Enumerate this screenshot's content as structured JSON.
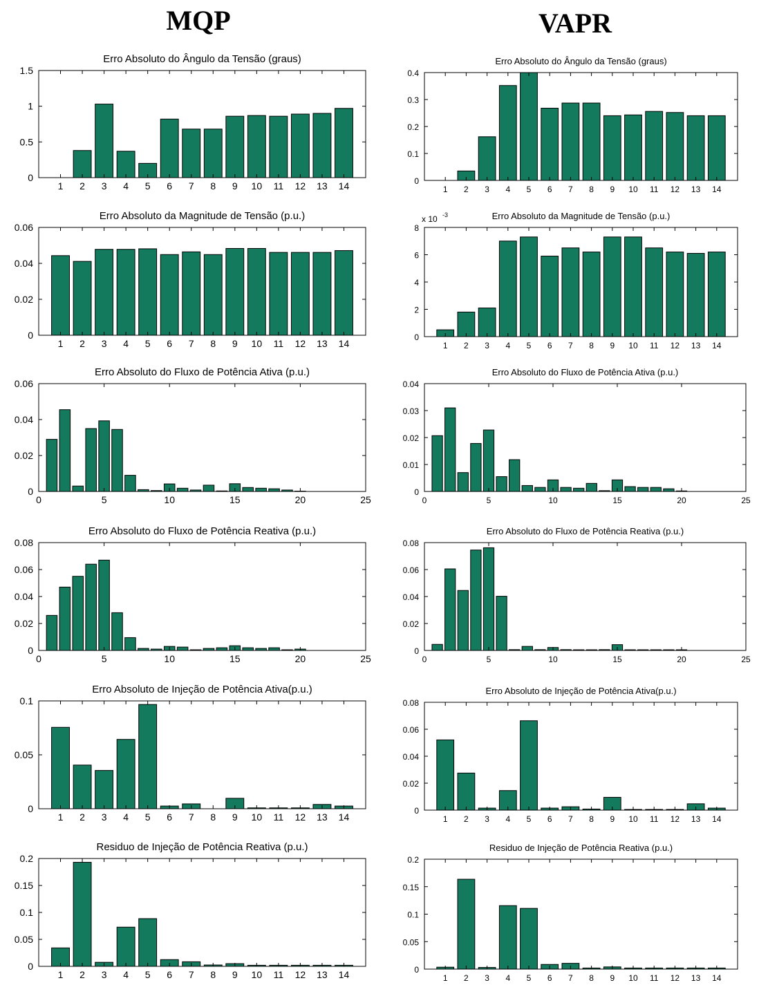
{
  "columns": {
    "left_title": "MQP",
    "right_title": "VAPR"
  },
  "colors": {
    "bar_fill": "#147a5e",
    "bar_stroke": "#000000"
  },
  "chart_data": [
    {
      "type": "bar",
      "title": "Erro Absoluto do Ângulo da Tensão (graus)",
      "xlabel": "",
      "ylabel": "",
      "categories": [
        "1",
        "2",
        "3",
        "4",
        "5",
        "6",
        "7",
        "8",
        "9",
        "10",
        "11",
        "12",
        "13",
        "14"
      ],
      "values": [
        0,
        0.38,
        1.03,
        0.37,
        0.2,
        0.82,
        0.68,
        0.68,
        0.86,
        0.87,
        0.86,
        0.89,
        0.9,
        0.97
      ],
      "ylim": [
        0,
        1.5
      ],
      "yticks": [
        "0",
        "0.5",
        "1",
        "1.5"
      ],
      "ytick_values": [
        0,
        0.5,
        1,
        1.5
      ]
    },
    {
      "type": "bar",
      "title": "Erro Absoluto do Ângulo da Tensão (graus)",
      "xlabel": "",
      "ylabel": "",
      "categories": [
        "1",
        "2",
        "3",
        "4",
        "5",
        "6",
        "7",
        "8",
        "9",
        "10",
        "11",
        "12",
        "13",
        "14"
      ],
      "values": [
        0,
        0.035,
        0.162,
        0.352,
        0.4,
        0.268,
        0.287,
        0.287,
        0.24,
        0.243,
        0.256,
        0.252,
        0.24,
        0.24
      ],
      "ylim": [
        0,
        0.4
      ],
      "yticks": [
        "0",
        "0.1",
        "0.2",
        "0.3",
        "0.4"
      ],
      "ytick_values": [
        0,
        0.1,
        0.2,
        0.3,
        0.4
      ]
    },
    {
      "type": "bar",
      "title": "Erro Absoluto da Magnitude de Tensão (p.u.)",
      "xlabel": "",
      "ylabel": "",
      "categories": [
        "1",
        "2",
        "3",
        "4",
        "5",
        "6",
        "7",
        "8",
        "9",
        "10",
        "11",
        "12",
        "13",
        "14"
      ],
      "values": [
        0.0443,
        0.0411,
        0.0478,
        0.0478,
        0.0481,
        0.0449,
        0.0464,
        0.0449,
        0.0483,
        0.0483,
        0.0461,
        0.0461,
        0.0461,
        0.0471
      ],
      "ylim": [
        0,
        0.06
      ],
      "yticks": [
        "0",
        "0.02",
        "0.04",
        "0.06"
      ],
      "ytick_values": [
        0,
        0.02,
        0.04,
        0.06
      ]
    },
    {
      "type": "bar",
      "title": "Erro Absoluto da Magnitude de Tensão (p.u.)",
      "xlabel": "",
      "ylabel": "",
      "exponent_label": "x 10",
      "exponent_power": "-3",
      "categories": [
        "1",
        "2",
        "3",
        "4",
        "5",
        "6",
        "7",
        "8",
        "9",
        "10",
        "11",
        "12",
        "13",
        "14"
      ],
      "values": [
        0.5,
        1.8,
        2.1,
        7.0,
        7.3,
        5.9,
        6.5,
        6.2,
        7.3,
        7.3,
        6.5,
        6.2,
        6.1,
        6.2
      ],
      "ylim": [
        0,
        8
      ],
      "yticks": [
        "0",
        "2",
        "4",
        "6",
        "8"
      ],
      "ytick_values": [
        0,
        2,
        4,
        6,
        8
      ]
    },
    {
      "type": "bar",
      "title": "Erro Absoluto do Fluxo de Potência Ativa  (p.u.)",
      "xlabel": "",
      "ylabel": "",
      "x": [
        1,
        2,
        3,
        4,
        5,
        6,
        7,
        8,
        9,
        10,
        11,
        12,
        13,
        14,
        15,
        16,
        17,
        18,
        19,
        20
      ],
      "values": [
        0.029,
        0.0455,
        0.003,
        0.035,
        0.0393,
        0.0345,
        0.009,
        0.001,
        0.0005,
        0.0042,
        0.0018,
        0.0008,
        0.0035,
        0.0003,
        0.0043,
        0.0022,
        0.0018,
        0.0015,
        0.0008,
        0.0002
      ],
      "xlim": [
        0,
        25
      ],
      "xticks": [
        "0",
        "5",
        "10",
        "15",
        "20",
        "25"
      ],
      "xtick_values": [
        0,
        5,
        10,
        15,
        20,
        25
      ],
      "ylim": [
        0,
        0.06
      ],
      "yticks": [
        "0",
        "0.02",
        "0.04",
        "0.06"
      ],
      "ytick_values": [
        0,
        0.02,
        0.04,
        0.06
      ]
    },
    {
      "type": "bar",
      "title": "Erro Absoluto do Fluxo de Potência Ativa  (p.u.)",
      "xlabel": "",
      "ylabel": "",
      "x": [
        1,
        2,
        3,
        4,
        5,
        6,
        7,
        8,
        9,
        10,
        11,
        12,
        13,
        14,
        15,
        16,
        17,
        18,
        19,
        20
      ],
      "values": [
        0.0207,
        0.031,
        0.007,
        0.0178,
        0.0228,
        0.0055,
        0.0118,
        0.0022,
        0.0015,
        0.0043,
        0.0015,
        0.0012,
        0.003,
        0.0003,
        0.0043,
        0.0018,
        0.0015,
        0.0015,
        0.001,
        0.0002
      ],
      "xlim": [
        0,
        25
      ],
      "xticks": [
        "0",
        "5",
        "10",
        "15",
        "20",
        "25"
      ],
      "xtick_values": [
        0,
        5,
        10,
        15,
        20,
        25
      ],
      "ylim": [
        0,
        0.04
      ],
      "yticks": [
        "0",
        "0.01",
        "0.02",
        "0.03",
        "0.04"
      ],
      "ytick_values": [
        0,
        0.01,
        0.02,
        0.03,
        0.04
      ]
    },
    {
      "type": "bar",
      "title": "Erro Absoluto do Fluxo de Potência Reativa (p.u.)",
      "xlabel": "",
      "ylabel": "",
      "x": [
        1,
        2,
        3,
        4,
        5,
        6,
        7,
        8,
        9,
        10,
        11,
        12,
        13,
        14,
        15,
        16,
        17,
        18,
        19,
        20
      ],
      "values": [
        0.026,
        0.047,
        0.055,
        0.064,
        0.067,
        0.028,
        0.0095,
        0.0015,
        0.001,
        0.003,
        0.0025,
        0.0005,
        0.0015,
        0.002,
        0.0035,
        0.002,
        0.0015,
        0.002,
        0.0005,
        0.001
      ],
      "xlim": [
        0,
        25
      ],
      "xticks": [
        "0",
        "5",
        "10",
        "15",
        "20",
        "25"
      ],
      "xtick_values": [
        0,
        5,
        10,
        15,
        20,
        25
      ],
      "ylim": [
        0,
        0.08
      ],
      "yticks": [
        "0",
        "0.02",
        "0.04",
        "0.06",
        "0.08"
      ],
      "ytick_values": [
        0,
        0.02,
        0.04,
        0.06,
        0.08
      ]
    },
    {
      "type": "bar",
      "title": "Erro Absoluto do Fluxo de Potência Reativa (p.u.)",
      "xlabel": "",
      "ylabel": "",
      "x": [
        1,
        2,
        3,
        4,
        5,
        6,
        7,
        8,
        9,
        10,
        11,
        12,
        13,
        14,
        15,
        16,
        17,
        18,
        19,
        20
      ],
      "values": [
        0.0045,
        0.0605,
        0.0445,
        0.0745,
        0.0762,
        0.0402,
        0.0006,
        0.003,
        0.0006,
        0.0022,
        0.0006,
        0.0005,
        0.0005,
        0.0006,
        0.0043,
        0.0005,
        0.0005,
        0.0005,
        0.0005,
        0.0005
      ],
      "xlim": [
        0,
        25
      ],
      "xticks": [
        "0",
        "5",
        "10",
        "15",
        "20",
        "25"
      ],
      "xtick_values": [
        0,
        5,
        10,
        15,
        20,
        25
      ],
      "ylim": [
        0,
        0.08
      ],
      "yticks": [
        "0",
        "0.02",
        "0.04",
        "0.06",
        "0.08"
      ],
      "ytick_values": [
        0,
        0.02,
        0.04,
        0.06,
        0.08
      ]
    },
    {
      "type": "bar",
      "title": "Erro Absoluto de Injeção de Potência Ativa(p.u.)",
      "xlabel": "",
      "ylabel": "",
      "categories": [
        "1",
        "2",
        "3",
        "4",
        "5",
        "6",
        "7",
        "8",
        "9",
        "10",
        "11",
        "12",
        "13",
        "14"
      ],
      "values": [
        0.0755,
        0.0405,
        0.0355,
        0.0643,
        0.0967,
        0.0025,
        0.0045,
        0,
        0.0097,
        0.0008,
        0.0008,
        0.0008,
        0.004,
        0.0025
      ],
      "ylim": [
        0,
        0.1
      ],
      "yticks": [
        "0",
        "0.05",
        "0.1"
      ],
      "ytick_values": [
        0,
        0.05,
        0.1
      ]
    },
    {
      "type": "bar",
      "title": "Erro Absoluto de Injeção de Potência Ativa(p.u.)",
      "xlabel": "",
      "ylabel": "",
      "categories": [
        "1",
        "2",
        "3",
        "4",
        "5",
        "6",
        "7",
        "8",
        "9",
        "10",
        "11",
        "12",
        "13",
        "14"
      ],
      "values": [
        0.0521,
        0.0275,
        0.0015,
        0.0145,
        0.0663,
        0.0015,
        0.0025,
        0.0008,
        0.0095,
        0.0005,
        0.0005,
        0.0005,
        0.0047,
        0.0015
      ],
      "ylim": [
        0,
        0.08
      ],
      "yticks": [
        "0",
        "0.02",
        "0.04",
        "0.06",
        "0.08"
      ],
      "ytick_values": [
        0,
        0.02,
        0.04,
        0.06,
        0.08
      ]
    },
    {
      "type": "bar",
      "title": "Residuo de Injeção de Potência Reativa (p.u.)",
      "xlabel": "",
      "ylabel": "",
      "categories": [
        "1",
        "2",
        "3",
        "4",
        "5",
        "6",
        "7",
        "8",
        "9",
        "10",
        "11",
        "12",
        "13",
        "14"
      ],
      "values": [
        0.0342,
        0.193,
        0.0075,
        0.0727,
        0.0885,
        0.0125,
        0.0085,
        0.0025,
        0.005,
        0.002,
        0.002,
        0.002,
        0.002,
        0.002
      ],
      "ylim": [
        0,
        0.2
      ],
      "yticks": [
        "0",
        "0.05",
        "0.1",
        "0.15",
        "0.2"
      ],
      "ytick_values": [
        0,
        0.05,
        0.1,
        0.15,
        0.2
      ]
    },
    {
      "type": "bar",
      "title": "Residuo de Injeção de Potência Reativa (p.u.)",
      "xlabel": "",
      "ylabel": "",
      "categories": [
        "1",
        "2",
        "3",
        "4",
        "5",
        "6",
        "7",
        "8",
        "9",
        "10",
        "11",
        "12",
        "13",
        "14"
      ],
      "values": [
        0.0035,
        0.1635,
        0.003,
        0.1155,
        0.1105,
        0.0085,
        0.0105,
        0.002,
        0.004,
        0.002,
        0.002,
        0.002,
        0.002,
        0.002
      ],
      "ylim": [
        0,
        0.2
      ],
      "yticks": [
        "0",
        "0.05",
        "0.1",
        "0.15",
        "0.2"
      ],
      "ytick_values": [
        0,
        0.05,
        0.1,
        0.15,
        0.2
      ]
    }
  ]
}
